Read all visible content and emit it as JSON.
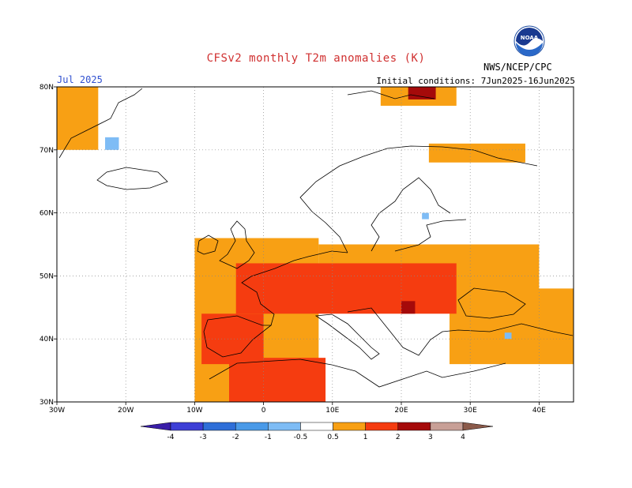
{
  "title": "CFSv2 monthly T2m anomalies (K)",
  "month_label": "Jul 2025",
  "initial_conditions": "Initial conditions: 7Jun2025-16Jun2025",
  "agency": "NWS/NCEP/CPC",
  "logo_text": "NOAA",
  "map": {
    "lon_range": [
      -30,
      45
    ],
    "lat_range": [
      30,
      80
    ],
    "lon_ticks": [
      {
        "value": -30,
        "label": "30W"
      },
      {
        "value": -20,
        "label": "20W"
      },
      {
        "value": -10,
        "label": "10W"
      },
      {
        "value": 0,
        "label": "0"
      },
      {
        "value": 10,
        "label": "10E"
      },
      {
        "value": 20,
        "label": "20E"
      },
      {
        "value": 30,
        "label": "30E"
      },
      {
        "value": 40,
        "label": "40E"
      }
    ],
    "lat_ticks": [
      {
        "value": 30,
        "label": "30N"
      },
      {
        "value": 40,
        "label": "40N"
      },
      {
        "value": 50,
        "label": "50N"
      },
      {
        "value": 60,
        "label": "60N"
      },
      {
        "value": 70,
        "label": "70N"
      },
      {
        "value": 80,
        "label": "80N"
      }
    ],
    "grid": true
  },
  "legend": {
    "levels": [
      "-4",
      "-3",
      "-2",
      "-1",
      "-0.5",
      "0.5",
      "1",
      "2",
      "3",
      "4"
    ],
    "colors": [
      "#3a1ea8",
      "#3d3fd6",
      "#2f6fd8",
      "#4a9ae8",
      "#7ebcf5",
      "#ffffff",
      "#f8a014",
      "#f53c10",
      "#a50a0a",
      "#c8a097",
      "#8b5a4a"
    ]
  },
  "anomaly_regions": [
    {
      "level": "0.5-1",
      "color": "#f8a014",
      "lon": [
        -30,
        -24
      ],
      "lat": [
        70,
        80
      ]
    },
    {
      "level": "0.5-1",
      "color": "#f8a014",
      "lon": [
        -10,
        8
      ],
      "lat": [
        30,
        56
      ]
    },
    {
      "level": "0.5-1",
      "color": "#f8a014",
      "lon": [
        8,
        40
      ],
      "lat": [
        46,
        55
      ]
    },
    {
      "level": "0.5-1",
      "color": "#f8a014",
      "lon": [
        27,
        45
      ],
      "lat": [
        36,
        48
      ]
    },
    {
      "level": "0.5-1",
      "color": "#f8a014",
      "lon": [
        24,
        38
      ],
      "lat": [
        68,
        71
      ]
    },
    {
      "level": "0.5-1",
      "color": "#f8a014",
      "lon": [
        17,
        28
      ],
      "lat": [
        77,
        80
      ]
    },
    {
      "level": "1-2",
      "color": "#f53c10",
      "lon": [
        -9,
        0
      ],
      "lat": [
        36,
        44
      ]
    },
    {
      "level": "1-2",
      "color": "#f53c10",
      "lon": [
        -4,
        28
      ],
      "lat": [
        44,
        52
      ]
    },
    {
      "level": "1-2",
      "color": "#f53c10",
      "lon": [
        -5,
        9
      ],
      "lat": [
        30,
        37
      ]
    },
    {
      "level": "2-3",
      "color": "#a50a0a",
      "lon": [
        20,
        22
      ],
      "lat": [
        44,
        46
      ]
    },
    {
      "level": "2-3",
      "color": "#a50a0a",
      "lon": [
        21,
        25
      ],
      "lat": [
        78,
        80
      ]
    },
    {
      "level": "-1--0.5",
      "color": "#7ebcf5",
      "lon": [
        -23,
        -21
      ],
      "lat": [
        70,
        72
      ]
    },
    {
      "level": "-1--0.5",
      "color": "#7ebcf5",
      "lon": [
        23,
        24
      ],
      "lat": [
        59,
        60
      ]
    },
    {
      "level": "-1--0.5",
      "color": "#7ebcf5",
      "lon": [
        35,
        36
      ],
      "lat": [
        40,
        41
      ]
    }
  ]
}
